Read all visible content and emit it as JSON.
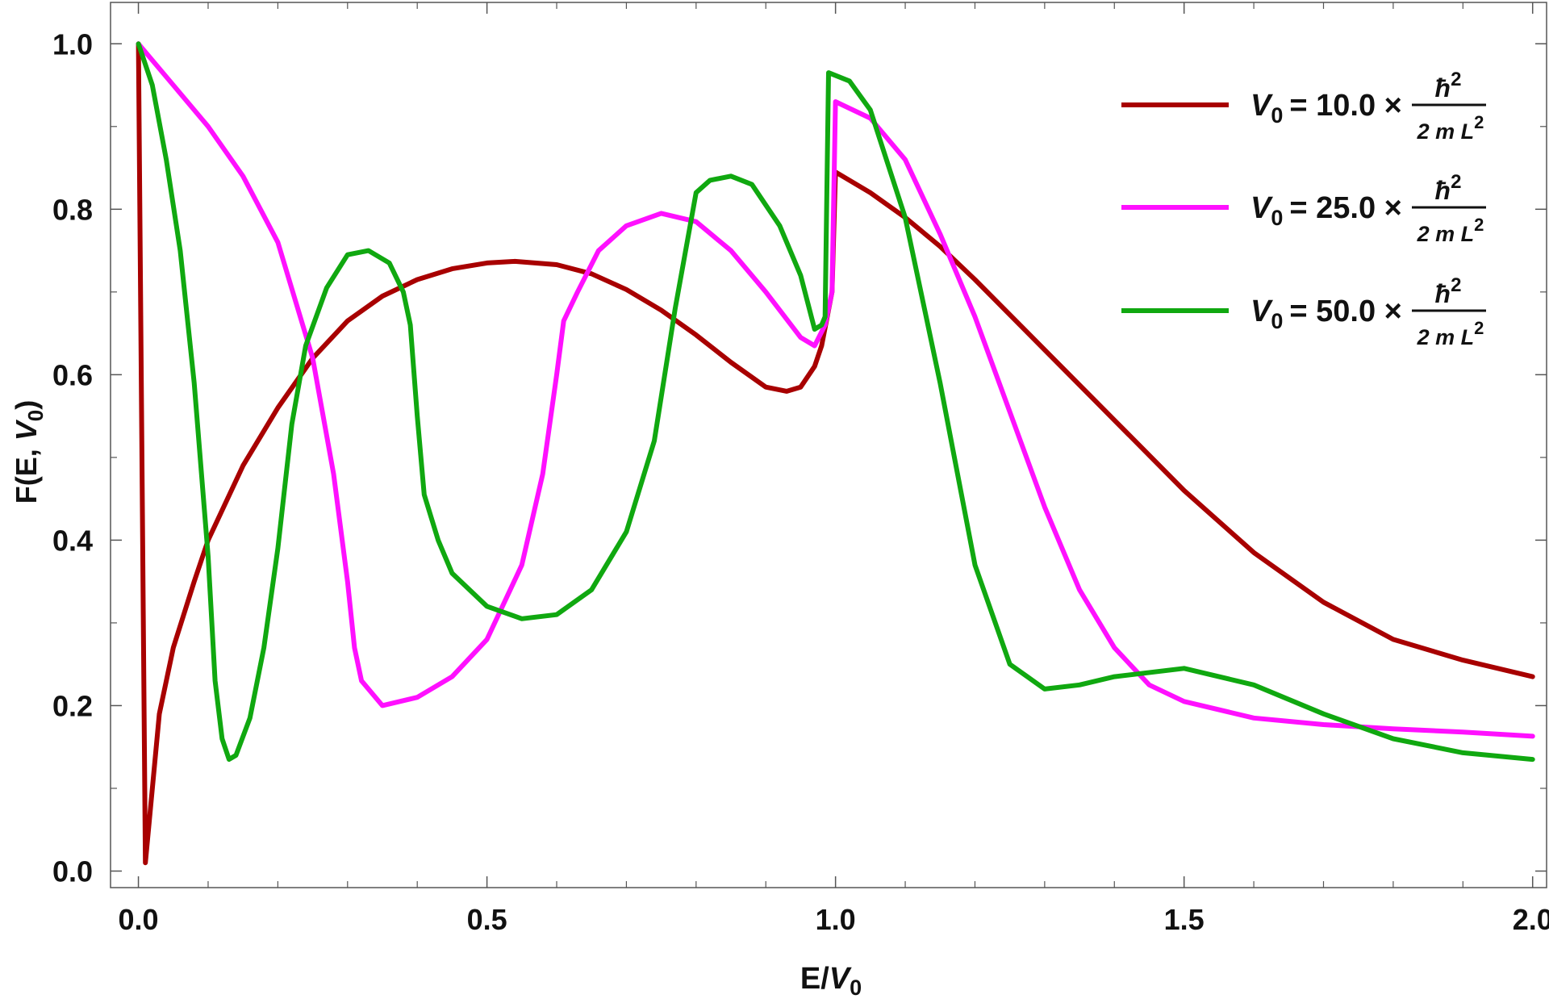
{
  "chart_data": {
    "type": "line",
    "title": "",
    "xlabel": {
      "base": "E/",
      "var": "V",
      "sub": "0"
    },
    "ylabel": {
      "prefix": "F(E, ",
      "var": "V",
      "sub": "0",
      "suffix": ")"
    },
    "xlim": [
      -0.04,
      2.02
    ],
    "ylim": [
      -0.02,
      1.05
    ],
    "x_ticks": [
      0.0,
      0.5,
      1.0,
      1.5,
      2.0
    ],
    "x_tick_labels": [
      "0.0",
      "0.5",
      "1.0",
      "1.5",
      "2.0"
    ],
    "y_ticks": [
      0.0,
      0.2,
      0.4,
      0.6,
      0.8,
      1.0
    ],
    "y_tick_labels": [
      "0.0",
      "0.2",
      "0.4",
      "0.6",
      "0.8",
      "1.0"
    ],
    "grid": false,
    "frame": true,
    "legend_position": "top-right",
    "series": [
      {
        "legend": {
          "var": "V",
          "sub": "0",
          "eq": "= 10.0 ×",
          "num_base": "ħ",
          "num_exp": "2",
          "den_base": "2 m L",
          "den_exp": "2"
        },
        "color": "#a80000",
        "points": [
          [
            0.0,
            1.0
          ],
          [
            0.01,
            0.01
          ],
          [
            0.03,
            0.19
          ],
          [
            0.05,
            0.27
          ],
          [
            0.08,
            0.35
          ],
          [
            0.1,
            0.4
          ],
          [
            0.15,
            0.49
          ],
          [
            0.2,
            0.56
          ],
          [
            0.25,
            0.62
          ],
          [
            0.3,
            0.665
          ],
          [
            0.35,
            0.695
          ],
          [
            0.4,
            0.715
          ],
          [
            0.45,
            0.728
          ],
          [
            0.5,
            0.735
          ],
          [
            0.54,
            0.737
          ],
          [
            0.6,
            0.733
          ],
          [
            0.65,
            0.722
          ],
          [
            0.7,
            0.703
          ],
          [
            0.75,
            0.678
          ],
          [
            0.8,
            0.648
          ],
          [
            0.85,
            0.615
          ],
          [
            0.9,
            0.585
          ],
          [
            0.93,
            0.58
          ],
          [
            0.95,
            0.585
          ],
          [
            0.97,
            0.61
          ],
          [
            0.98,
            0.635
          ],
          [
            0.995,
            0.7
          ],
          [
            1.0,
            0.845
          ],
          [
            1.05,
            0.82
          ],
          [
            1.1,
            0.79
          ],
          [
            1.15,
            0.755
          ],
          [
            1.2,
            0.715
          ],
          [
            1.3,
            0.63
          ],
          [
            1.4,
            0.545
          ],
          [
            1.5,
            0.46
          ],
          [
            1.6,
            0.385
          ],
          [
            1.7,
            0.325
          ],
          [
            1.8,
            0.28
          ],
          [
            1.9,
            0.255
          ],
          [
            2.0,
            0.235
          ]
        ]
      },
      {
        "legend": {
          "var": "V",
          "sub": "0",
          "eq": "= 25.0 ×",
          "num_base": "ħ",
          "num_exp": "2",
          "den_base": "2 m L",
          "den_exp": "2"
        },
        "color": "#ff10ff",
        "points": [
          [
            0.0,
            1.0
          ],
          [
            0.05,
            0.95
          ],
          [
            0.1,
            0.9
          ],
          [
            0.15,
            0.84
          ],
          [
            0.2,
            0.76
          ],
          [
            0.25,
            0.62
          ],
          [
            0.28,
            0.48
          ],
          [
            0.3,
            0.35
          ],
          [
            0.31,
            0.27
          ],
          [
            0.32,
            0.23
          ],
          [
            0.35,
            0.2
          ],
          [
            0.4,
            0.21
          ],
          [
            0.45,
            0.235
          ],
          [
            0.5,
            0.28
          ],
          [
            0.55,
            0.37
          ],
          [
            0.58,
            0.48
          ],
          [
            0.6,
            0.6
          ],
          [
            0.61,
            0.665
          ],
          [
            0.63,
            0.7
          ],
          [
            0.66,
            0.75
          ],
          [
            0.7,
            0.78
          ],
          [
            0.75,
            0.795
          ],
          [
            0.8,
            0.785
          ],
          [
            0.85,
            0.75
          ],
          [
            0.9,
            0.7
          ],
          [
            0.95,
            0.645
          ],
          [
            0.97,
            0.635
          ],
          [
            0.985,
            0.66
          ],
          [
            0.995,
            0.7
          ],
          [
            1.0,
            0.93
          ],
          [
            1.05,
            0.91
          ],
          [
            1.1,
            0.86
          ],
          [
            1.15,
            0.77
          ],
          [
            1.2,
            0.67
          ],
          [
            1.25,
            0.555
          ],
          [
            1.3,
            0.44
          ],
          [
            1.35,
            0.34
          ],
          [
            1.4,
            0.27
          ],
          [
            1.45,
            0.225
          ],
          [
            1.5,
            0.205
          ],
          [
            1.6,
            0.185
          ],
          [
            1.7,
            0.177
          ],
          [
            1.8,
            0.172
          ],
          [
            1.9,
            0.168
          ],
          [
            2.0,
            0.163
          ]
        ]
      },
      {
        "legend": {
          "var": "V",
          "sub": "0",
          "eq": "= 50.0 ×",
          "num_base": "ħ",
          "num_exp": "2",
          "den_base": "2 m L",
          "den_exp": "2"
        },
        "color": "#10a810",
        "points": [
          [
            0.0,
            1.0
          ],
          [
            0.02,
            0.95
          ],
          [
            0.04,
            0.86
          ],
          [
            0.06,
            0.75
          ],
          [
            0.08,
            0.59
          ],
          [
            0.1,
            0.38
          ],
          [
            0.11,
            0.23
          ],
          [
            0.12,
            0.16
          ],
          [
            0.13,
            0.135
          ],
          [
            0.14,
            0.14
          ],
          [
            0.16,
            0.185
          ],
          [
            0.18,
            0.27
          ],
          [
            0.2,
            0.39
          ],
          [
            0.22,
            0.54
          ],
          [
            0.24,
            0.635
          ],
          [
            0.27,
            0.705
          ],
          [
            0.3,
            0.745
          ],
          [
            0.33,
            0.75
          ],
          [
            0.36,
            0.735
          ],
          [
            0.38,
            0.7
          ],
          [
            0.39,
            0.66
          ],
          [
            0.4,
            0.55
          ],
          [
            0.41,
            0.455
          ],
          [
            0.43,
            0.4
          ],
          [
            0.45,
            0.36
          ],
          [
            0.5,
            0.32
          ],
          [
            0.55,
            0.305
          ],
          [
            0.6,
            0.31
          ],
          [
            0.65,
            0.34
          ],
          [
            0.7,
            0.41
          ],
          [
            0.74,
            0.52
          ],
          [
            0.77,
            0.68
          ],
          [
            0.8,
            0.82
          ],
          [
            0.82,
            0.835
          ],
          [
            0.85,
            0.84
          ],
          [
            0.88,
            0.83
          ],
          [
            0.92,
            0.78
          ],
          [
            0.95,
            0.72
          ],
          [
            0.97,
            0.655
          ],
          [
            0.98,
            0.66
          ],
          [
            0.985,
            0.67
          ],
          [
            0.99,
            0.965
          ],
          [
            1.02,
            0.955
          ],
          [
            1.05,
            0.92
          ],
          [
            1.1,
            0.79
          ],
          [
            1.15,
            0.59
          ],
          [
            1.2,
            0.37
          ],
          [
            1.25,
            0.25
          ],
          [
            1.3,
            0.22
          ],
          [
            1.35,
            0.225
          ],
          [
            1.4,
            0.235
          ],
          [
            1.5,
            0.245
          ],
          [
            1.6,
            0.225
          ],
          [
            1.7,
            0.19
          ],
          [
            1.8,
            0.16
          ],
          [
            1.9,
            0.143
          ],
          [
            2.0,
            0.135
          ]
        ]
      }
    ]
  }
}
